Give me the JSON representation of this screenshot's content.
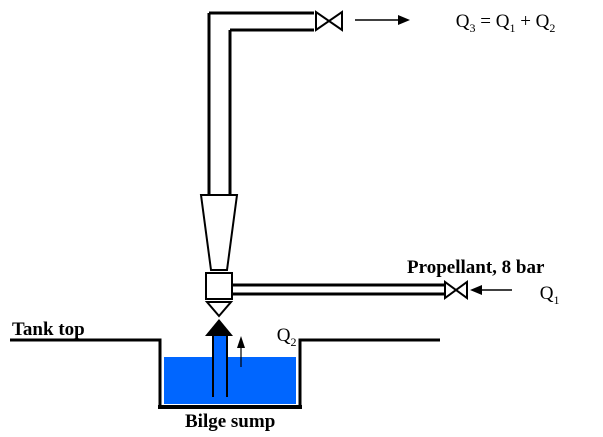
{
  "labels": {
    "q3_equation": {
      "q3": "Q",
      "q3_sub": "3",
      "equals": " = ",
      "q1": "Q",
      "q1_sub": "1",
      "plus": " + ",
      "q2": "Q",
      "q2_sub": "2"
    },
    "propellant": "Propellant, 8 bar",
    "q1_inlet": {
      "q": "Q",
      "sub": "1"
    },
    "q2_suction": {
      "q": "Q",
      "sub": "2"
    },
    "tank_top": "Tank top",
    "bilge_sump": "Bilge sump"
  },
  "colors": {
    "line": "#000000",
    "water": "#0066ff",
    "background": "#ffffff"
  }
}
